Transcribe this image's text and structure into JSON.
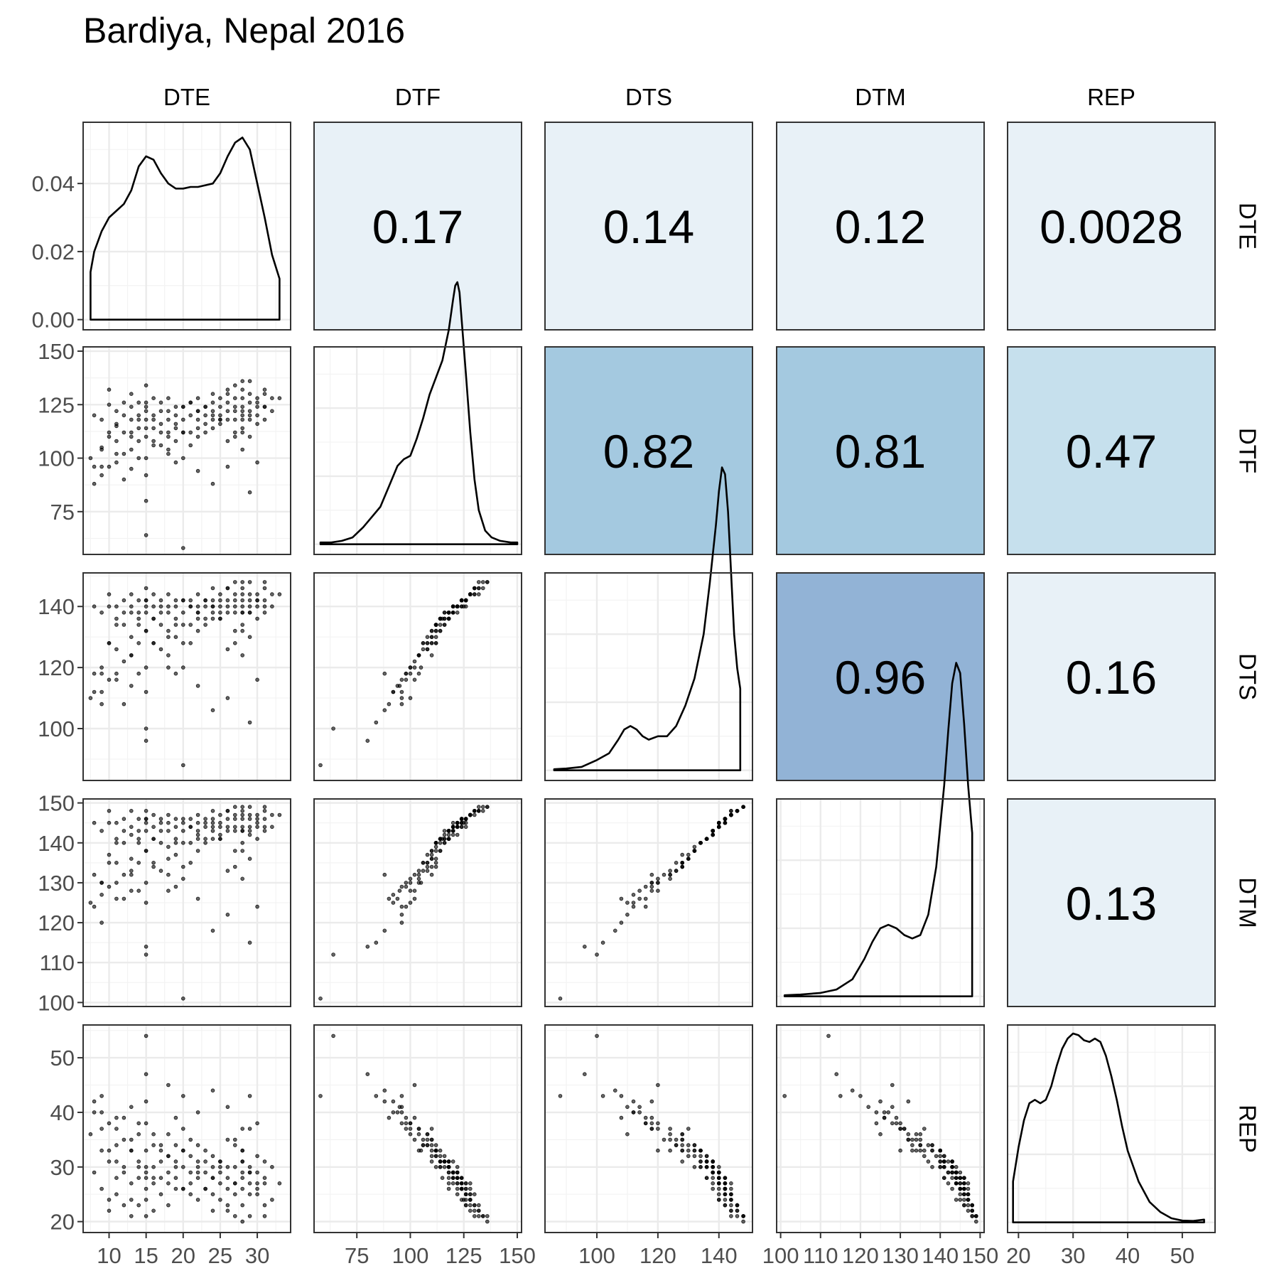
{
  "title": "Bardiya, Nepal 2016",
  "chart_data": {
    "type": "scatter",
    "layout": "scatterplot-matrix",
    "title": "Bardiya, Nepal 2016",
    "variables": [
      "DTE",
      "DTF",
      "DTS",
      "DTM",
      "REP"
    ],
    "grid": true,
    "density_axis": {
      "ticks": [
        0.0,
        0.02,
        0.04
      ],
      "tick_labels": [
        "0.00",
        "0.02",
        "0.04"
      ],
      "range": [
        -0.003,
        0.058
      ]
    },
    "axes": {
      "DTE": {
        "range": [
          6.5,
          34.5
        ],
        "ticks": [
          10,
          15,
          20,
          25,
          30
        ]
      },
      "DTF": {
        "range": [
          55,
          152
        ],
        "ticks": [
          75,
          100,
          125,
          150
        ]
      },
      "DTS": {
        "range": [
          83,
          151
        ],
        "ticks": [
          100,
          120,
          140
        ]
      },
      "DTM": {
        "range": [
          99,
          151
        ],
        "ticks": [
          100,
          110,
          120,
          130,
          140,
          150
        ]
      },
      "REP": {
        "range": [
          18,
          56
        ],
        "ticks": [
          20,
          30,
          40,
          50
        ]
      }
    },
    "correlations": [
      {
        "x": "DTE",
        "y": "DTF",
        "value": "0.17"
      },
      {
        "x": "DTE",
        "y": "DTS",
        "value": "0.14"
      },
      {
        "x": "DTE",
        "y": "DTM",
        "value": "0.12"
      },
      {
        "x": "DTE",
        "y": "REP",
        "value": "0.0028"
      },
      {
        "x": "DTF",
        "y": "DTS",
        "value": "0.82"
      },
      {
        "x": "DTF",
        "y": "DTM",
        "value": "0.81"
      },
      {
        "x": "DTF",
        "y": "REP",
        "value": "0.47"
      },
      {
        "x": "DTS",
        "y": "DTM",
        "value": "0.96"
      },
      {
        "x": "DTS",
        "y": "REP",
        "value": "0.16"
      },
      {
        "x": "DTM",
        "y": "REP",
        "value": "0.13"
      }
    ],
    "colors": {
      "tile_low": "#e8f1f7",
      "tile_mid": "#c6e0ed",
      "tile_high": "#a4c9e0",
      "tile_max": "#92b3d6",
      "points": "#000000",
      "grid": "#ebebeb"
    },
    "densities": {
      "DTE": [
        [
          7.5,
          0.014
        ],
        [
          8,
          0.02
        ],
        [
          9,
          0.026
        ],
        [
          10,
          0.03
        ],
        [
          11,
          0.032
        ],
        [
          12,
          0.034
        ],
        [
          13,
          0.038
        ],
        [
          14,
          0.045
        ],
        [
          15,
          0.048
        ],
        [
          16,
          0.047
        ],
        [
          17,
          0.043
        ],
        [
          18,
          0.04
        ],
        [
          19,
          0.0385
        ],
        [
          20,
          0.0385
        ],
        [
          21,
          0.039
        ],
        [
          22,
          0.039
        ],
        [
          23,
          0.0395
        ],
        [
          24,
          0.04
        ],
        [
          25,
          0.043
        ],
        [
          26,
          0.048
        ],
        [
          27,
          0.052
        ],
        [
          28,
          0.0535
        ],
        [
          29,
          0.05
        ],
        [
          30,
          0.04
        ],
        [
          31,
          0.03
        ],
        [
          32,
          0.019
        ],
        [
          33,
          0.012
        ]
      ],
      "DTF": [
        [
          58,
          0.0005
        ],
        [
          63,
          0.0005
        ],
        [
          68,
          0.001
        ],
        [
          73,
          0.002
        ],
        [
          78,
          0.005
        ],
        [
          82,
          0.008
        ],
        [
          86,
          0.011
        ],
        [
          90,
          0.017
        ],
        [
          94,
          0.023
        ],
        [
          97,
          0.025
        ],
        [
          100,
          0.026
        ],
        [
          103,
          0.031
        ],
        [
          106,
          0.037
        ],
        [
          109,
          0.044
        ],
        [
          112,
          0.049
        ],
        [
          115,
          0.054
        ],
        [
          118,
          0.063
        ],
        [
          120,
          0.072
        ],
        [
          121,
          0.076
        ],
        [
          122,
          0.077
        ],
        [
          123,
          0.074
        ],
        [
          124,
          0.066
        ],
        [
          126,
          0.05
        ],
        [
          128,
          0.033
        ],
        [
          130,
          0.019
        ],
        [
          132,
          0.01
        ],
        [
          135,
          0.004
        ],
        [
          138,
          0.002
        ],
        [
          142,
          0.001
        ],
        [
          147,
          0.0005
        ],
        [
          150,
          0.0005
        ]
      ],
      "DTS": [
        [
          86,
          0.0003
        ],
        [
          90,
          0.0005
        ],
        [
          95,
          0.001
        ],
        [
          100,
          0.003
        ],
        [
          104,
          0.005
        ],
        [
          107,
          0.009
        ],
        [
          109,
          0.012
        ],
        [
          111,
          0.013
        ],
        [
          113,
          0.012
        ],
        [
          115,
          0.01
        ],
        [
          117,
          0.009
        ],
        [
          120,
          0.01
        ],
        [
          123,
          0.01
        ],
        [
          126,
          0.013
        ],
        [
          129,
          0.019
        ],
        [
          132,
          0.027
        ],
        [
          135,
          0.04
        ],
        [
          137,
          0.055
        ],
        [
          139,
          0.072
        ],
        [
          140,
          0.082
        ],
        [
          141,
          0.089
        ],
        [
          142,
          0.087
        ],
        [
          143,
          0.076
        ],
        [
          144,
          0.058
        ],
        [
          145,
          0.04
        ],
        [
          146,
          0.03
        ],
        [
          147,
          0.024
        ]
      ],
      "DTM": [
        [
          101,
          0.0003
        ],
        [
          105,
          0.0005
        ],
        [
          110,
          0.001
        ],
        [
          114,
          0.002
        ],
        [
          118,
          0.005
        ],
        [
          121,
          0.011
        ],
        [
          123,
          0.016
        ],
        [
          125,
          0.02
        ],
        [
          127,
          0.021
        ],
        [
          129,
          0.02
        ],
        [
          131,
          0.018
        ],
        [
          133,
          0.017
        ],
        [
          135,
          0.018
        ],
        [
          137,
          0.024
        ],
        [
          139,
          0.038
        ],
        [
          141,
          0.062
        ],
        [
          142,
          0.078
        ],
        [
          143,
          0.092
        ],
        [
          144,
          0.098
        ],
        [
          145,
          0.095
        ],
        [
          146,
          0.08
        ],
        [
          147,
          0.062
        ],
        [
          148,
          0.048
        ]
      ],
      "REP": [
        [
          19,
          0.012
        ],
        [
          20,
          0.022
        ],
        [
          21,
          0.03
        ],
        [
          22,
          0.035
        ],
        [
          23,
          0.036
        ],
        [
          24,
          0.035
        ],
        [
          25,
          0.036
        ],
        [
          26,
          0.04
        ],
        [
          27,
          0.046
        ],
        [
          28,
          0.051
        ],
        [
          29,
          0.054
        ],
        [
          30,
          0.0555
        ],
        [
          31,
          0.055
        ],
        [
          32,
          0.0535
        ],
        [
          33,
          0.053
        ],
        [
          34,
          0.054
        ],
        [
          35,
          0.053
        ],
        [
          36,
          0.049
        ],
        [
          37,
          0.043
        ],
        [
          38,
          0.036
        ],
        [
          39,
          0.028
        ],
        [
          40,
          0.021
        ],
        [
          42,
          0.012
        ],
        [
          44,
          0.006
        ],
        [
          46,
          0.003
        ],
        [
          48,
          0.0012
        ],
        [
          50,
          0.0005
        ],
        [
          52,
          0.0004
        ],
        [
          54,
          0.0008
        ]
      ]
    },
    "observations": {
      "DTE": [
        7.5,
        8,
        8,
        9,
        9,
        9,
        10,
        10,
        10,
        10,
        11,
        11,
        11,
        11,
        12,
        12,
        12,
        12,
        13,
        13,
        13,
        13,
        13,
        14,
        14,
        14,
        14,
        15,
        15,
        15,
        15,
        15,
        15,
        15,
        16,
        16,
        16,
        16,
        17,
        17,
        17,
        17,
        18,
        18,
        18,
        18,
        18,
        19,
        19,
        19,
        19,
        19,
        20,
        20,
        20,
        20,
        21,
        21,
        21,
        21,
        22,
        22,
        22,
        22,
        22,
        23,
        23,
        23,
        23,
        24,
        24,
        24,
        24,
        24,
        25,
        25,
        25,
        25,
        26,
        26,
        26,
        26,
        26,
        27,
        27,
        27,
        27,
        27,
        28,
        28,
        28,
        28,
        28,
        28,
        28,
        29,
        29,
        29,
        29,
        29,
        29,
        30,
        30,
        30,
        30,
        31,
        31,
        31,
        32,
        33,
        8,
        9,
        10,
        11,
        12,
        13,
        14,
        15,
        16,
        17,
        18,
        19,
        20,
        21,
        22,
        23,
        24,
        25,
        26,
        27,
        28,
        29,
        30,
        31,
        32,
        9,
        11,
        13,
        14,
        15,
        15,
        16,
        18,
        20,
        22,
        24,
        25,
        27,
        28,
        29,
        30,
        15,
        26,
        28,
        31,
        20
      ],
      "DTF": [
        100,
        88,
        120,
        92,
        105,
        118,
        96,
        110,
        125,
        132,
        98,
        108,
        115,
        122,
        90,
        102,
        112,
        126,
        95,
        104,
        118,
        124,
        130,
        108,
        114,
        120,
        126,
        80,
        100,
        110,
        118,
        122,
        126,
        134,
        106,
        114,
        120,
        128,
        112,
        116,
        122,
        126,
        104,
        112,
        118,
        122,
        128,
        98,
        108,
        114,
        120,
        124,
        100,
        112,
        118,
        124,
        106,
        112,
        120,
        126,
        110,
        114,
        118,
        122,
        128,
        112,
        116,
        120,
        124,
        114,
        118,
        122,
        126,
        130,
        116,
        120,
        124,
        128,
        108,
        118,
        122,
        126,
        132,
        112,
        118,
        124,
        128,
        134,
        112,
        118,
        122,
        124,
        128,
        132,
        136,
        110,
        118,
        122,
        126,
        130,
        136,
        116,
        120,
        124,
        128,
        118,
        124,
        130,
        122,
        128,
        96,
        104,
        112,
        116,
        120,
        110,
        100,
        114,
        118,
        106,
        110,
        116,
        124,
        126,
        122,
        124,
        120,
        118,
        130,
        122,
        114,
        120,
        126,
        124,
        128,
        96,
        102,
        112,
        118,
        64,
        92,
        108,
        102,
        58,
        94,
        88,
        118,
        110,
        104,
        84,
        98,
        124,
        96,
        120,
        132,
        112
      ],
      "DTS": [
        110,
        118,
        140,
        112,
        120,
        138,
        116,
        128,
        140,
        144,
        118,
        126,
        136,
        140,
        108,
        122,
        134,
        142,
        114,
        124,
        138,
        140,
        144,
        128,
        134,
        138,
        142,
        96,
        120,
        132,
        138,
        140,
        142,
        146,
        128,
        136,
        140,
        144,
        134,
        138,
        140,
        142,
        124,
        132,
        138,
        140,
        144,
        118,
        130,
        136,
        140,
        142,
        120,
        134,
        138,
        142,
        128,
        134,
        140,
        142,
        132,
        136,
        138,
        140,
        144,
        134,
        136,
        140,
        142,
        136,
        138,
        140,
        142,
        146,
        138,
        140,
        142,
        144,
        126,
        138,
        140,
        142,
        146,
        132,
        138,
        142,
        144,
        148,
        134,
        138,
        140,
        142,
        144,
        146,
        148,
        130,
        138,
        140,
        142,
        144,
        148,
        136,
        140,
        142,
        144,
        138,
        142,
        146,
        140,
        144,
        112,
        118,
        128,
        134,
        138,
        124,
        118,
        132,
        136,
        126,
        130,
        134,
        142,
        140,
        138,
        142,
        140,
        136,
        146,
        140,
        132,
        138,
        142,
        140,
        144,
        108,
        116,
        130,
        136,
        100,
        112,
        128,
        120,
        88,
        114,
        106,
        136,
        128,
        124,
        102,
        116,
        142,
        110,
        138,
        148,
        128
      ],
      "DTM": [
        125,
        132,
        145,
        127,
        130,
        143,
        129,
        137,
        145,
        148,
        130,
        135,
        141,
        145,
        126,
        132,
        140,
        146,
        128,
        133,
        142,
        144,
        148,
        135,
        140,
        143,
        146,
        114,
        130,
        138,
        143,
        145,
        146,
        148,
        135,
        141,
        144,
        147,
        140,
        143,
        145,
        146,
        132,
        139,
        143,
        145,
        147,
        129,
        137,
        141,
        144,
        146,
        131,
        140,
        143,
        146,
        135,
        140,
        144,
        146,
        138,
        141,
        143,
        145,
        147,
        140,
        141,
        144,
        146,
        141,
        143,
        145,
        146,
        148,
        142,
        144,
        145,
        147,
        133,
        143,
        144,
        146,
        148,
        138,
        143,
        146,
        147,
        149,
        140,
        143,
        144,
        146,
        147,
        148,
        149,
        136,
        143,
        144,
        146,
        147,
        149,
        141,
        144,
        146,
        147,
        143,
        146,
        148,
        144,
        147,
        124,
        130,
        135,
        140,
        143,
        132,
        128,
        138,
        141,
        133,
        136,
        140,
        145,
        144,
        142,
        145,
        144,
        141,
        148,
        144,
        138,
        142,
        145,
        144,
        147,
        120,
        126,
        136,
        141,
        112,
        125,
        134,
        128,
        101,
        126,
        118,
        141,
        134,
        131,
        115,
        124,
        146,
        122,
        143,
        149,
        134
      ],
      "REP": [
        36,
        42,
        29,
        40,
        33,
        26,
        38,
        31,
        24,
        22,
        37,
        34,
        28,
        25,
        39,
        35,
        30,
        23,
        41,
        33,
        27,
        24,
        21,
        36,
        31,
        28,
        23,
        47,
        38,
        33,
        29,
        26,
        24,
        21,
        34,
        30,
        27,
        22,
        33,
        31,
        28,
        25,
        36,
        32,
        29,
        27,
        23,
        39,
        34,
        31,
        28,
        26,
        37,
        33,
        30,
        26,
        35,
        32,
        29,
        25,
        34,
        31,
        30,
        28,
        24,
        33,
        31,
        29,
        26,
        32,
        30,
        28,
        25,
        22,
        31,
        29,
        27,
        24,
        35,
        30,
        28,
        26,
        22,
        34,
        30,
        27,
        25,
        21,
        33,
        31,
        29,
        28,
        26,
        23,
        20,
        37,
        30,
        29,
        27,
        25,
        21,
        32,
        29,
        27,
        25,
        31,
        28,
        23,
        30,
        27,
        40,
        37,
        33,
        31,
        29,
        35,
        38,
        30,
        28,
        34,
        32,
        30,
        26,
        27,
        29,
        26,
        28,
        30,
        23,
        27,
        33,
        29,
        26,
        27,
        24,
        43,
        39,
        33,
        30,
        54,
        42,
        36,
        45,
        43,
        40,
        44,
        31,
        35,
        37,
        43,
        38,
        28,
        41,
        31,
        21,
        33
      ]
    }
  }
}
